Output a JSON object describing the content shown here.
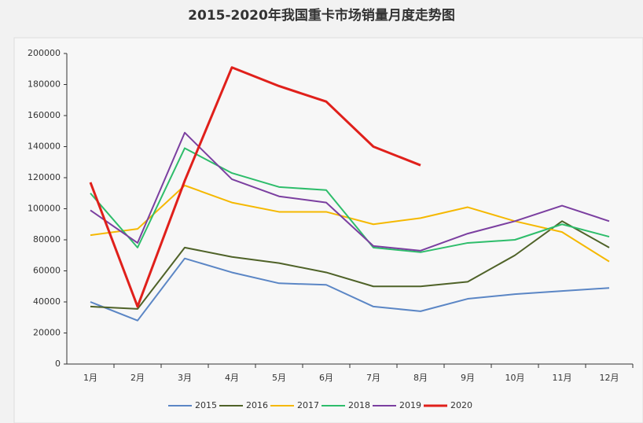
{
  "chart_data": {
    "type": "line",
    "title": "2015-2020年我国重卡市场销量月度走势图",
    "categories": [
      "1月",
      "2月",
      "3月",
      "4月",
      "5月",
      "6月",
      "7月",
      "8月",
      "9月",
      "10月",
      "11月",
      "12月"
    ],
    "series": [
      {
        "name": "2015",
        "color": "#5b86c5",
        "values": [
          40000,
          28000,
          68000,
          59000,
          52000,
          51000,
          37000,
          34000,
          42000,
          45000,
          47000,
          49000
        ]
      },
      {
        "name": "2016",
        "color": "#4f6228",
        "values": [
          37000,
          35500,
          75000,
          69000,
          65000,
          59000,
          50000,
          50000,
          53000,
          70000,
          92000,
          75000
        ]
      },
      {
        "name": "2017",
        "color": "#f5b800",
        "values": [
          83000,
          87000,
          115000,
          104000,
          98000,
          98000,
          90000,
          94000,
          101000,
          92000,
          85000,
          66000
        ]
      },
      {
        "name": "2018",
        "color": "#2ebd6b",
        "values": [
          110000,
          75000,
          139000,
          123000,
          114000,
          112000,
          75000,
          72000,
          78000,
          80000,
          90000,
          82000
        ]
      },
      {
        "name": "2019",
        "color": "#7b3fa0",
        "values": [
          99000,
          78000,
          149000,
          119000,
          108000,
          104000,
          76000,
          73000,
          84000,
          92000,
          102000,
          92000
        ]
      },
      {
        "name": "2020",
        "color": "#e0201b",
        "values": [
          117000,
          37000,
          118000,
          191000,
          179000,
          169000,
          140000,
          128000,
          null,
          null,
          null,
          null
        ]
      }
    ],
    "ylim": [
      0,
      200000
    ],
    "yticks": [
      0,
      20000,
      40000,
      60000,
      80000,
      100000,
      120000,
      140000,
      160000,
      180000,
      200000
    ]
  }
}
